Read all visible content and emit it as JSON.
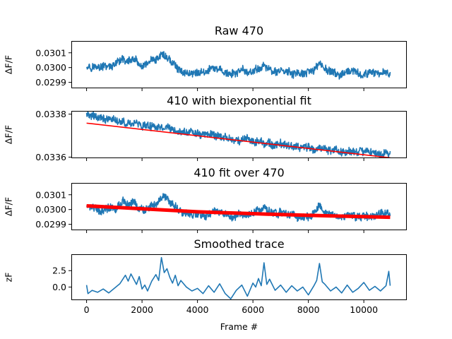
{
  "chart_data": [
    {
      "type": "line",
      "title": "Raw 470",
      "ylabel": "ΔF/F",
      "xlabel": "",
      "xlim": [
        -550,
        11550
      ],
      "ylim": [
        0.02986,
        0.03018
      ],
      "yticks": [
        {
          "value": 0.0299,
          "label": "0.0299"
        },
        {
          "value": 0.03,
          "label": "0.0300"
        },
        {
          "value": 0.0301,
          "label": "0.0301"
        }
      ],
      "xticks": [
        0,
        2000,
        4000,
        6000,
        8000,
        10000
      ],
      "show_xticklabels": false,
      "grid": false,
      "series": [
        {
          "color": "#1f77b4",
          "style": "noisy",
          "x": [
            0,
            500,
            1000,
            1300,
            1500,
            1700,
            1900,
            2100,
            2300,
            2500,
            2700,
            2900,
            3100,
            3300,
            3500,
            3700,
            4000,
            4300,
            4600,
            4900,
            5200,
            5500,
            5800,
            6100,
            6400,
            6700,
            7000,
            7300,
            7600,
            7900,
            8200,
            8400,
            8600,
            8900,
            9200,
            9500,
            9800,
            10100,
            10400,
            10700,
            10950
          ],
          "y": [
            0.03002,
            0.03,
            0.03001,
            0.03005,
            0.03004,
            0.03006,
            0.03001,
            0.03,
            0.03004,
            0.03003,
            0.03009,
            0.03007,
            0.03003,
            0.02999,
            0.02997,
            0.02996,
            0.02997,
            0.02997,
            0.02999,
            0.02998,
            0.02995,
            0.02997,
            0.02997,
            0.02998,
            0.03002,
            0.02997,
            0.02998,
            0.02996,
            0.02996,
            0.02995,
            0.02998,
            0.03004,
            0.02999,
            0.02996,
            0.02995,
            0.02996,
            0.02996,
            0.02995,
            0.02996,
            0.02997,
            0.02997
          ]
        }
      ]
    },
    {
      "type": "line",
      "title": "410 with biexponential fit",
      "ylabel": "ΔF/F",
      "xlabel": "",
      "xlim": [
        -550,
        11550
      ],
      "ylim": [
        0.033595,
        0.033815
      ],
      "yticks": [
        {
          "value": 0.0336,
          "label": "0.0336"
        },
        {
          "value": 0.0338,
          "label": "0.0338"
        }
      ],
      "xticks": [
        0,
        2000,
        4000,
        6000,
        8000,
        10000
      ],
      "show_xticklabels": false,
      "grid": false,
      "series": [
        {
          "color": "#1f77b4",
          "style": "noisy",
          "x": [
            0,
            1000,
            2000,
            3000,
            4000,
            5000,
            6000,
            7000,
            8000,
            9000,
            10000,
            10950
          ],
          "y": [
            0.033795,
            0.03377,
            0.03375,
            0.03373,
            0.033707,
            0.03369,
            0.033673,
            0.033658,
            0.033643,
            0.033632,
            0.033623,
            0.033617
          ]
        },
        {
          "color": "#ff0000",
          "style": "line",
          "x": [
            0,
            10950
          ],
          "y": [
            0.033758,
            0.033597
          ]
        }
      ]
    },
    {
      "type": "line",
      "title": "410 fit over 470",
      "ylabel": "ΔF/F",
      "xlabel": "",
      "xlim": [
        -550,
        11550
      ],
      "ylim": [
        0.02986,
        0.03018
      ],
      "yticks": [
        {
          "value": 0.0299,
          "label": "0.0299"
        },
        {
          "value": 0.03,
          "label": "0.0300"
        },
        {
          "value": 0.0301,
          "label": "0.0301"
        }
      ],
      "xticks": [
        0,
        2000,
        4000,
        6000,
        8000,
        10000
      ],
      "show_xticklabels": false,
      "grid": false,
      "series": [
        {
          "color": "#1f77b4",
          "style": "noisy",
          "x": [
            0,
            500,
            1000,
            1300,
            1500,
            1700,
            1900,
            2100,
            2300,
            2500,
            2700,
            2900,
            3100,
            3300,
            3500,
            3700,
            4000,
            4300,
            4600,
            4900,
            5200,
            5500,
            5800,
            6100,
            6400,
            6700,
            7000,
            7300,
            7600,
            7900,
            8200,
            8400,
            8600,
            8900,
            9200,
            9500,
            9800,
            10100,
            10400,
            10700,
            10950
          ],
          "y": [
            0.03002,
            0.03,
            0.03001,
            0.03005,
            0.03004,
            0.03006,
            0.03001,
            0.03,
            0.03004,
            0.03003,
            0.03009,
            0.03007,
            0.03003,
            0.02999,
            0.02997,
            0.02996,
            0.02997,
            0.02997,
            0.02999,
            0.02998,
            0.02995,
            0.02997,
            0.02997,
            0.02998,
            0.03002,
            0.02997,
            0.02998,
            0.02996,
            0.02996,
            0.02995,
            0.02998,
            0.03004,
            0.02999,
            0.02996,
            0.02995,
            0.02996,
            0.02996,
            0.02995,
            0.02996,
            0.02997,
            0.02997
          ]
        },
        {
          "color": "#ff0000",
          "style": "thick",
          "x": [
            0,
            1000,
            2000,
            3000,
            4000,
            5000,
            6000,
            7000,
            8000,
            9000,
            10000,
            10950
          ],
          "y": [
            0.030025,
            0.030015,
            0.030005,
            0.029995,
            0.029985,
            0.029978,
            0.029972,
            0.029966,
            0.029961,
            0.029956,
            0.029952,
            0.029948
          ]
        }
      ]
    },
    {
      "type": "line",
      "title": "Smoothed trace",
      "ylabel": "zF",
      "xlabel": "Frame #",
      "xlim": [
        -550,
        11550
      ],
      "ylim": [
        -2.0,
        5.0
      ],
      "yticks": [
        {
          "value": 0.0,
          "label": "0.0"
        },
        {
          "value": 2.5,
          "label": "2.5"
        }
      ],
      "xticks": [
        0,
        2000,
        4000,
        6000,
        8000,
        10000
      ],
      "xticklabels": [
        "0",
        "2000",
        "4000",
        "6000",
        "8000",
        "10000"
      ],
      "show_xticklabels": true,
      "grid": false,
      "series": [
        {
          "color": "#1f77b4",
          "style": "line",
          "x": [
            0,
            50,
            200,
            400,
            600,
            800,
            1000,
            1200,
            1400,
            1500,
            1600,
            1700,
            1800,
            1900,
            2000,
            2100,
            2200,
            2350,
            2500,
            2600,
            2700,
            2800,
            2900,
            3000,
            3100,
            3200,
            3300,
            3400,
            3600,
            3800,
            4000,
            4200,
            4400,
            4600,
            4800,
            5000,
            5200,
            5400,
            5600,
            5800,
            6000,
            6100,
            6200,
            6300,
            6400,
            6500,
            6600,
            6800,
            7000,
            7200,
            7400,
            7600,
            7800,
            8000,
            8200,
            8300,
            8400,
            8500,
            8600,
            8800,
            9000,
            9200,
            9400,
            9600,
            9800,
            10000,
            10200,
            10400,
            10600,
            10800,
            10900,
            10950
          ],
          "y": [
            0.3,
            -1.0,
            -0.5,
            -0.8,
            -0.3,
            -0.9,
            -0.2,
            0.5,
            1.8,
            0.9,
            2.0,
            1.2,
            0.4,
            1.6,
            -0.3,
            0.3,
            -0.6,
            0.9,
            1.9,
            1.0,
            4.5,
            2.2,
            2.8,
            1.5,
            0.6,
            1.8,
            0.2,
            1.0,
            0.0,
            -0.6,
            -0.2,
            -1.0,
            0.2,
            -0.8,
            0.5,
            -1.0,
            -1.8,
            -0.5,
            0.3,
            -1.4,
            0.6,
            0.0,
            1.3,
            0.2,
            3.7,
            0.4,
            1.2,
            -0.5,
            0.3,
            -0.8,
            0.2,
            -0.6,
            0.0,
            -1.2,
            0.2,
            1.0,
            3.6,
            0.8,
            0.4,
            -0.6,
            0.0,
            -0.9,
            0.3,
            -0.8,
            -0.2,
            0.7,
            -0.5,
            0.1,
            -0.6,
            0.2,
            2.4,
            0.2
          ]
        }
      ]
    }
  ]
}
